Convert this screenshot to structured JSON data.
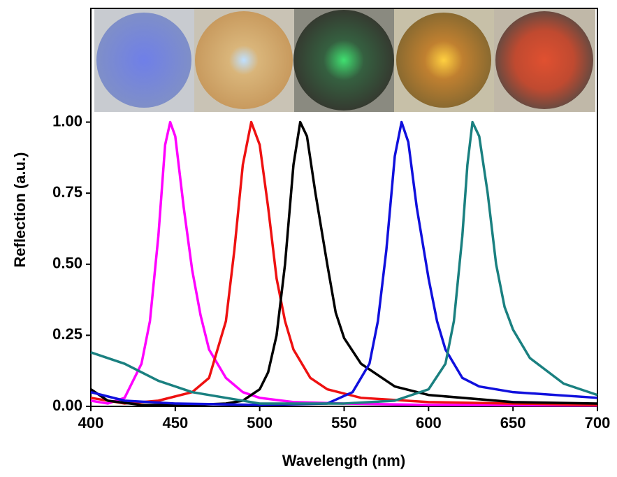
{
  "chart_data": {
    "type": "line",
    "xlabel": "Wavelength (nm)",
    "ylabel": "Reflection (a.u.)",
    "xlim": [
      400,
      700
    ],
    "ylim": [
      0,
      1.4
    ],
    "xticks": [
      400,
      450,
      500,
      550,
      600,
      650,
      700
    ],
    "yticks": [
      {
        "value": 0,
        "label": "0.00"
      },
      {
        "value": 0.25,
        "label": "0.25"
      },
      {
        "value": 0.5,
        "label": "0.50"
      },
      {
        "value": 0.75,
        "label": "0.75"
      },
      {
        "value": 1,
        "label": "1.00"
      }
    ],
    "series": [
      {
        "color": "#ff00ff",
        "x": [
          400,
          410,
          420,
          430,
          435,
          440,
          444,
          447,
          450,
          455,
          460,
          465,
          470,
          480,
          490,
          500,
          520,
          550,
          600,
          700
        ],
        "values": [
          0.02,
          0.01,
          0.03,
          0.15,
          0.3,
          0.6,
          0.92,
          1.0,
          0.95,
          0.7,
          0.48,
          0.32,
          0.2,
          0.1,
          0.05,
          0.03,
          0.015,
          0.01,
          0.005,
          0.003
        ]
      },
      {
        "color": "#ee1111",
        "x": [
          400,
          420,
          440,
          460,
          470,
          480,
          485,
          490,
          495,
          500,
          505,
          510,
          515,
          520,
          530,
          540,
          560,
          600,
          650,
          700
        ],
        "values": [
          0.03,
          0.01,
          0.02,
          0.05,
          0.1,
          0.3,
          0.55,
          0.85,
          1.0,
          0.92,
          0.7,
          0.45,
          0.3,
          0.2,
          0.1,
          0.06,
          0.03,
          0.015,
          0.01,
          0.005
        ]
      },
      {
        "color": "#000000",
        "x": [
          400,
          410,
          430,
          460,
          480,
          490,
          500,
          505,
          510,
          515,
          520,
          524,
          528,
          533,
          540,
          545,
          550,
          560,
          580,
          600,
          650,
          700
        ],
        "values": [
          0.06,
          0.02,
          0.005,
          0.005,
          0.01,
          0.02,
          0.06,
          0.12,
          0.25,
          0.5,
          0.85,
          1.0,
          0.95,
          0.75,
          0.5,
          0.33,
          0.24,
          0.15,
          0.07,
          0.04,
          0.015,
          0.01
        ]
      },
      {
        "color": "#1010dd",
        "x": [
          400,
          420,
          450,
          500,
          540,
          555,
          565,
          570,
          575,
          580,
          584,
          588,
          593,
          600,
          605,
          610,
          620,
          630,
          650,
          700
        ],
        "values": [
          0.05,
          0.02,
          0.01,
          0.005,
          0.01,
          0.05,
          0.15,
          0.3,
          0.55,
          0.88,
          1.0,
          0.93,
          0.7,
          0.45,
          0.3,
          0.2,
          0.1,
          0.07,
          0.05,
          0.03
        ]
      },
      {
        "color": "#1a8080",
        "x": [
          400,
          410,
          420,
          440,
          460,
          480,
          500,
          550,
          580,
          600,
          610,
          615,
          620,
          623,
          626,
          630,
          635,
          640,
          645,
          650,
          660,
          680,
          700
        ],
        "values": [
          0.19,
          0.17,
          0.15,
          0.09,
          0.05,
          0.03,
          0.01,
          0.01,
          0.02,
          0.06,
          0.15,
          0.3,
          0.6,
          0.85,
          1.0,
          0.95,
          0.75,
          0.5,
          0.35,
          0.27,
          0.17,
          0.08,
          0.04
        ]
      }
    ]
  }
}
